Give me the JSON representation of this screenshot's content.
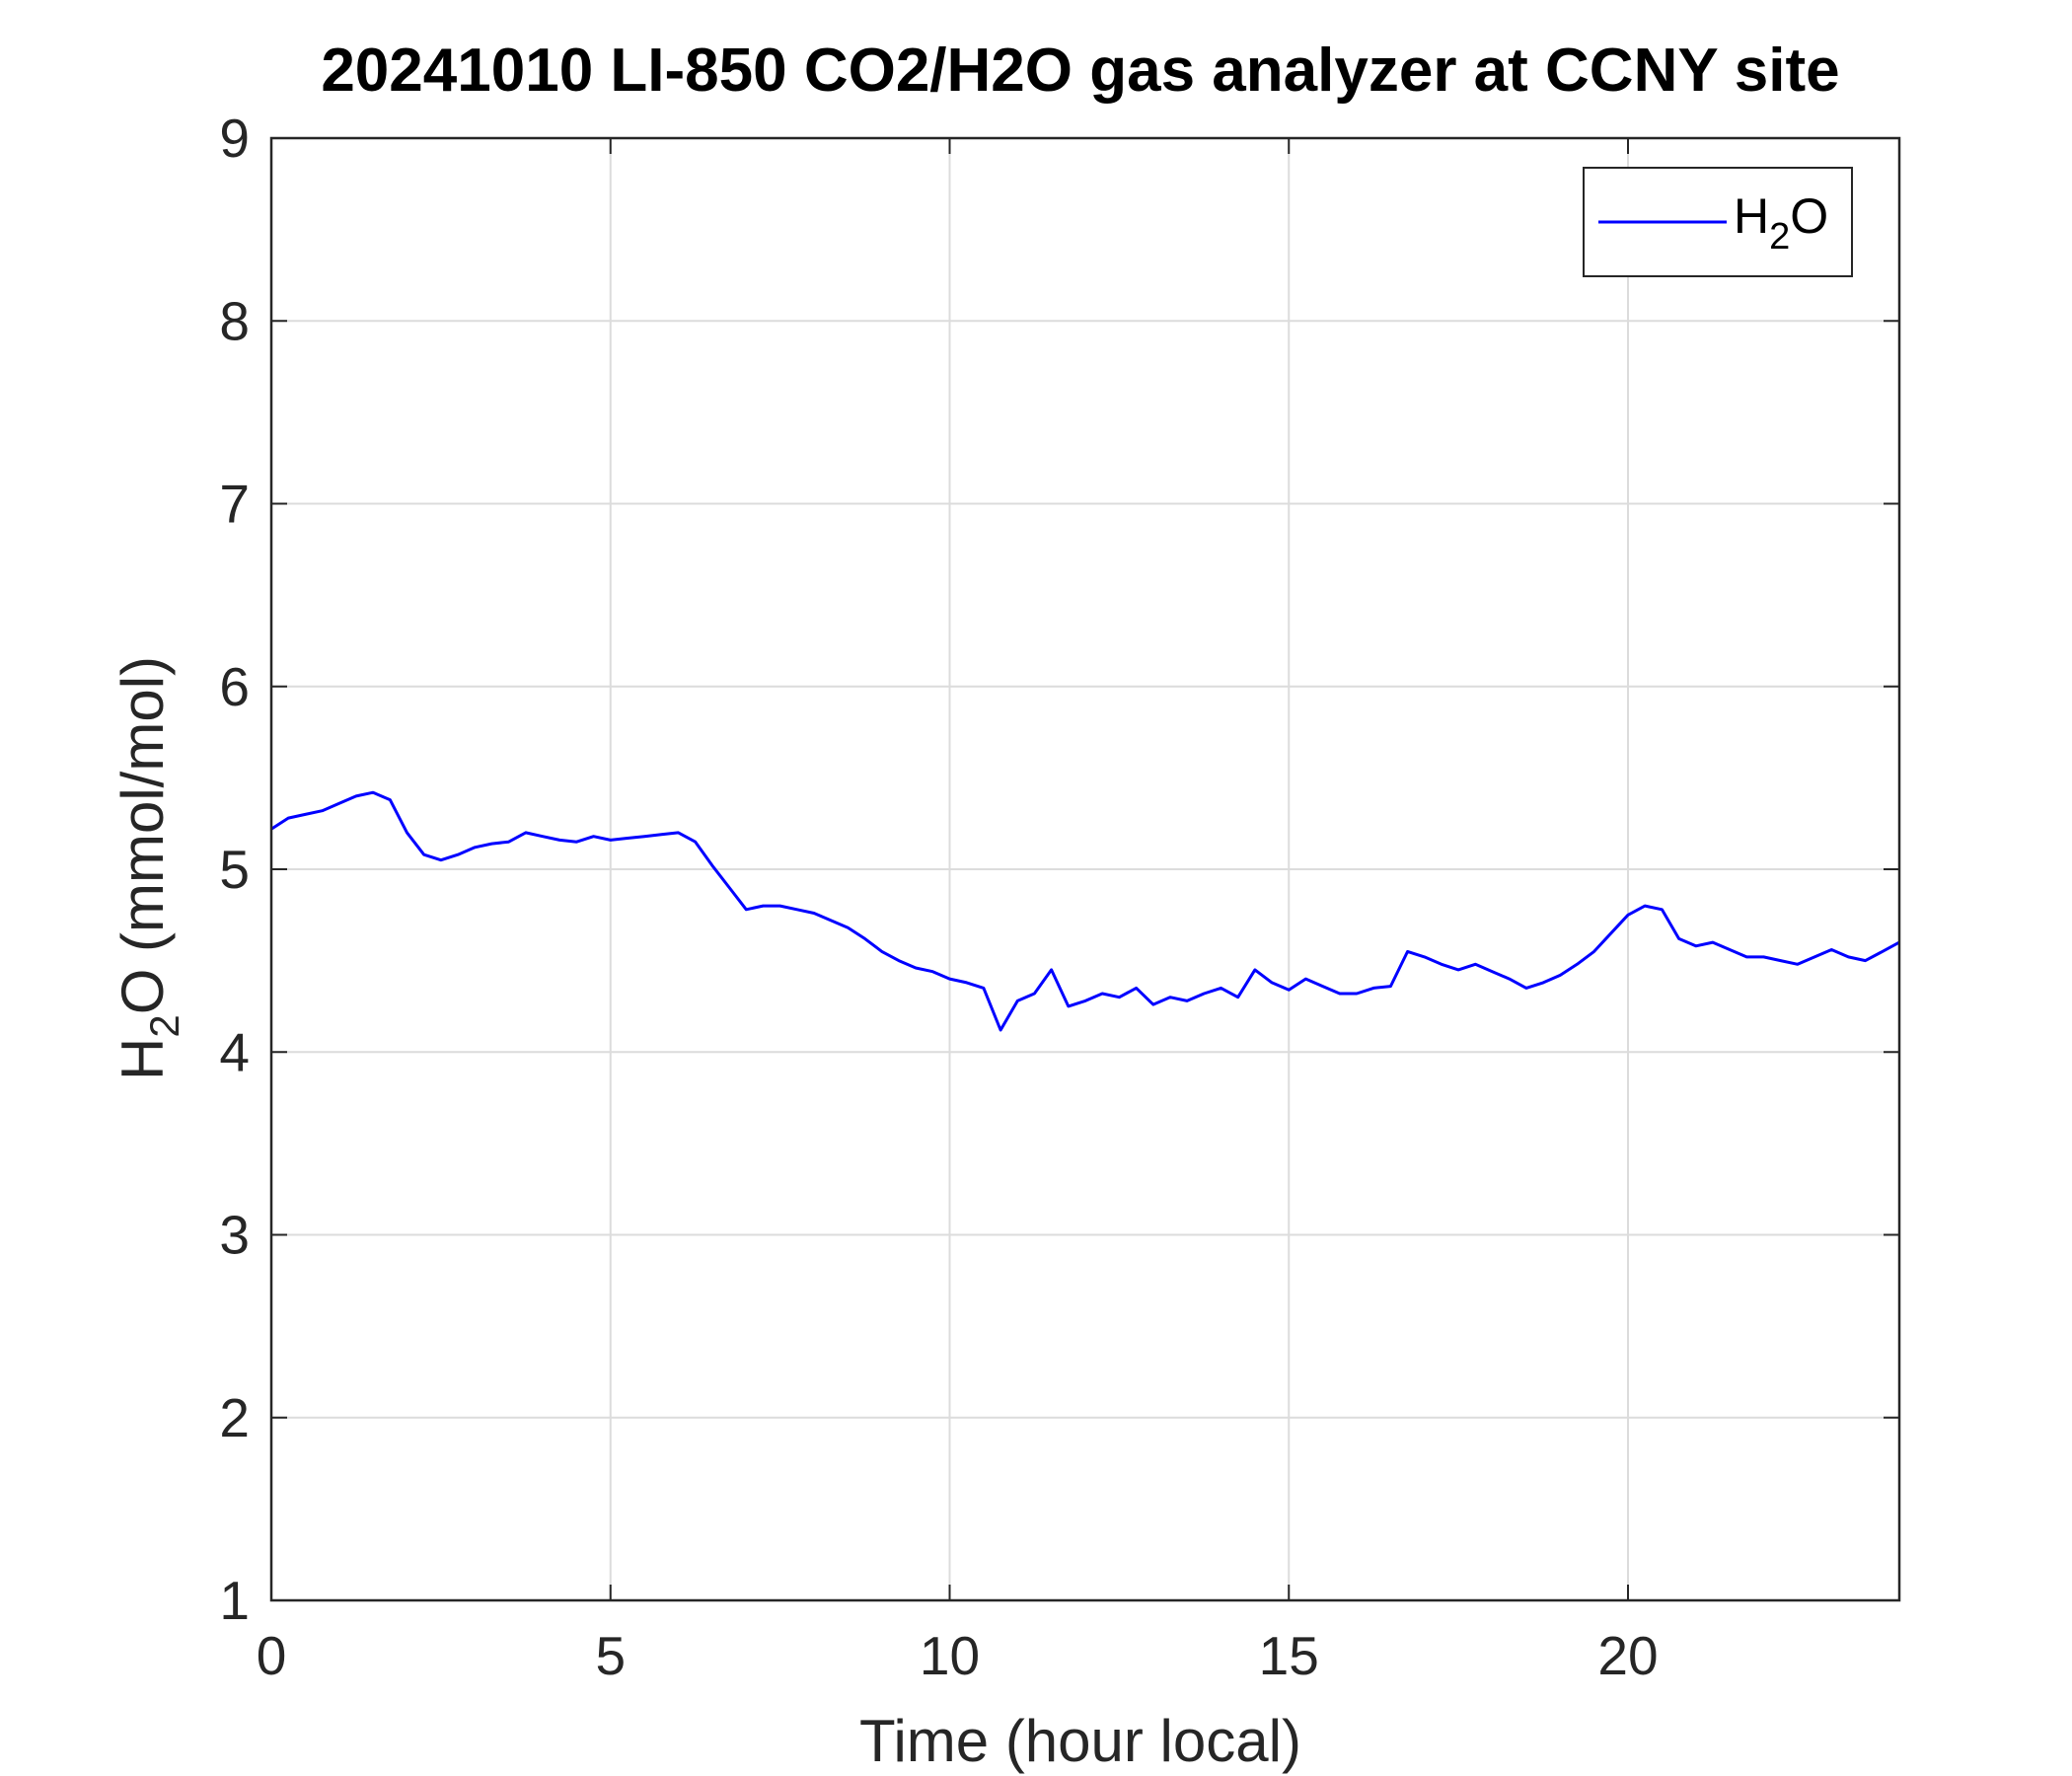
{
  "chart_data": {
    "type": "line",
    "title": "20241010 LI-850 CO2/H2O gas analyzer at CCNY site",
    "xlabel": "Time (hour local)",
    "ylabel": {
      "main": "H",
      "sub": "2",
      "rest": "O (mmol/mol)"
    },
    "xlim": [
      0,
      24
    ],
    "ylim": [
      1,
      9
    ],
    "xticks": [
      0,
      5,
      10,
      15,
      20
    ],
    "yticks": [
      1,
      2,
      3,
      4,
      5,
      6,
      7,
      8,
      9
    ],
    "grid": true,
    "legend_position": "top-right",
    "series": [
      {
        "name": {
          "main": "H",
          "sub": "2",
          "rest": "O"
        },
        "color": "#0000ff",
        "x": [
          0,
          0.25,
          0.5,
          0.75,
          1.0,
          1.25,
          1.5,
          1.75,
          2.0,
          2.25,
          2.5,
          2.75,
          3.0,
          3.25,
          3.5,
          3.75,
          4.0,
          4.25,
          4.5,
          4.75,
          5.0,
          5.25,
          5.5,
          5.75,
          6.0,
          6.25,
          6.5,
          6.75,
          7.0,
          7.25,
          7.5,
          7.75,
          8.0,
          8.25,
          8.5,
          8.75,
          9.0,
          9.25,
          9.5,
          9.75,
          10.0,
          10.25,
          10.5,
          10.75,
          11.0,
          11.25,
          11.5,
          11.75,
          12.0,
          12.25,
          12.5,
          12.75,
          13.0,
          13.25,
          13.5,
          13.75,
          14.0,
          14.25,
          14.5,
          14.75,
          15.0,
          15.25,
          15.5,
          15.75,
          16.0,
          16.25,
          16.5,
          16.75,
          17.0,
          17.25,
          17.5,
          17.75,
          18.0,
          18.25,
          18.5,
          18.75,
          19.0,
          19.25,
          19.5,
          19.75,
          20.0,
          20.25,
          20.5,
          20.75,
          21.0,
          21.25,
          21.5,
          21.75,
          22.0,
          22.25,
          22.5,
          22.75,
          23.0,
          23.25,
          23.5,
          23.75,
          24.0
        ],
        "values": [
          5.22,
          5.28,
          5.3,
          5.32,
          5.36,
          5.4,
          5.42,
          5.38,
          5.2,
          5.08,
          5.05,
          5.08,
          5.12,
          5.14,
          5.15,
          5.2,
          5.18,
          5.16,
          5.15,
          5.18,
          5.16,
          5.17,
          5.18,
          5.19,
          5.2,
          5.15,
          5.02,
          4.9,
          4.78,
          4.8,
          4.8,
          4.78,
          4.76,
          4.72,
          4.68,
          4.62,
          4.55,
          4.5,
          4.46,
          4.44,
          4.4,
          4.38,
          4.35,
          4.12,
          4.28,
          4.32,
          4.45,
          4.25,
          4.28,
          4.32,
          4.3,
          4.35,
          4.26,
          4.3,
          4.28,
          4.32,
          4.35,
          4.3,
          4.45,
          4.38,
          4.34,
          4.4,
          4.36,
          4.32,
          4.32,
          4.35,
          4.36,
          4.55,
          4.52,
          4.48,
          4.45,
          4.48,
          4.44,
          4.4,
          4.35,
          4.38,
          4.42,
          4.48,
          4.55,
          4.65,
          4.75,
          4.8,
          4.78,
          4.62,
          4.58,
          4.6,
          4.56,
          4.52,
          4.52,
          4.5,
          4.48,
          4.52,
          4.56,
          4.52,
          4.5,
          4.55,
          4.6
        ]
      }
    ]
  }
}
